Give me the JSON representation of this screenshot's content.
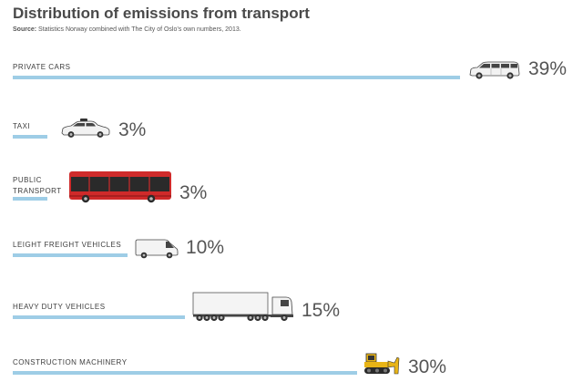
{
  "chart_data": {
    "type": "bar",
    "title": "Distribution of emissions from transport",
    "source_label": "Source:",
    "source_text": "Statistics Norway combined with The City of Oslo’s own numbers, 2013.",
    "categories": [
      "PRIVATE CARS",
      "TAXI",
      "PUBLIC TRANSPORT",
      "LEIGHT FREIGHT VEHICLES",
      "HEAVY DUTY VEHICLES",
      "CONSTRUCTION MACHINERY"
    ],
    "values": [
      39,
      3,
      3,
      10,
      15,
      30
    ],
    "value_labels": [
      "39%",
      "3%",
      "3%",
      "10%",
      "15%",
      "30%"
    ],
    "bar_color": "#9ecde6",
    "icons": [
      "station-wagon-icon",
      "taxi-icon",
      "bus-icon",
      "van-icon",
      "truck-icon",
      "bulldozer-icon"
    ],
    "orientation": "horizontal"
  }
}
